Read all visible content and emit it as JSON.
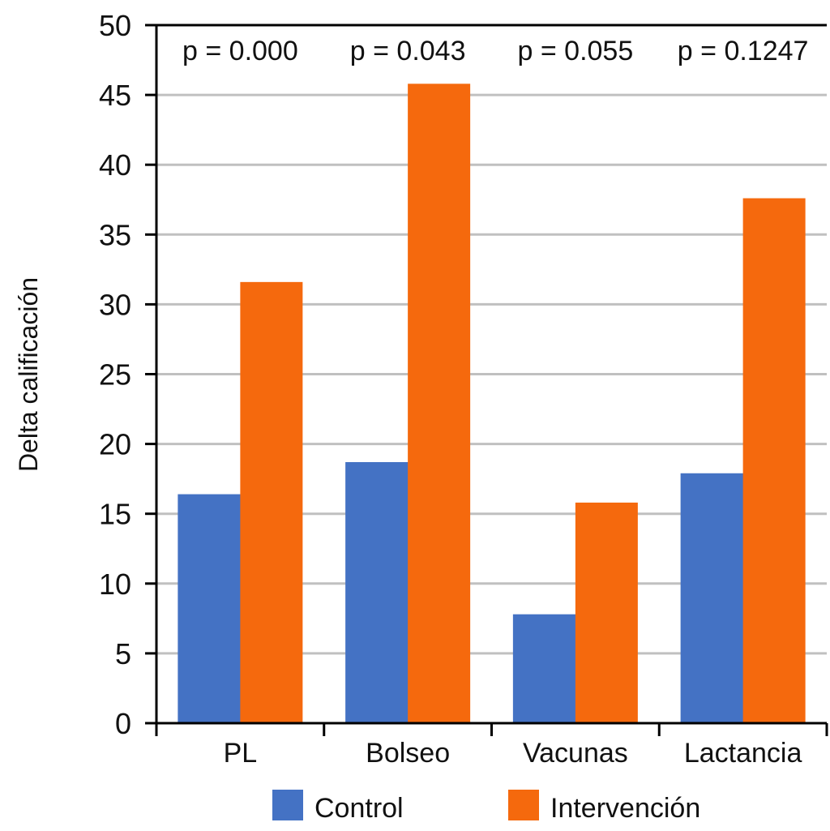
{
  "chart_data": {
    "type": "bar",
    "title": "",
    "xlabel": "",
    "ylabel": "Delta calificación",
    "ylim": [
      0,
      50
    ],
    "yticks": [
      0,
      5,
      10,
      15,
      20,
      25,
      30,
      35,
      40,
      45,
      50
    ],
    "grid": true,
    "categories": [
      "PL",
      "Bolseo",
      "Vacunas",
      "Lactancia"
    ],
    "series": [
      {
        "name": "Control",
        "color": "#4472C4",
        "values": [
          16.4,
          18.7,
          7.8,
          17.9
        ]
      },
      {
        "name": "Intervención",
        "color": "#F5690D",
        "values": [
          31.6,
          45.8,
          15.8,
          37.6
        ]
      }
    ],
    "annotations": [
      "p = 0.000",
      "p = 0.043",
      "p = 0.055",
      "p = 0.1247"
    ],
    "legend": {
      "placement": "bottom-center",
      "entries": [
        "Control",
        "Intervención"
      ]
    }
  }
}
